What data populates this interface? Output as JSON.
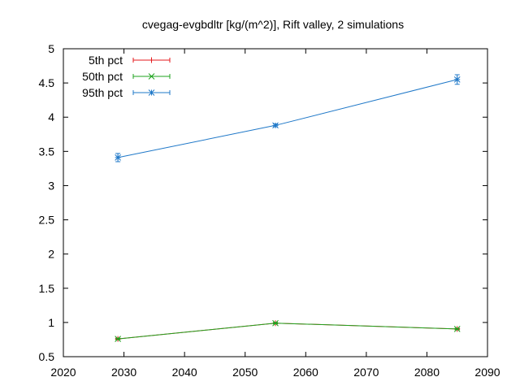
{
  "chart_data": {
    "type": "line",
    "title": "cvegag-evgbdltr [kg/(m^2)], Rift valley, 2 simulations",
    "xlabel": "",
    "ylabel": "",
    "xlim": [
      2020,
      2090
    ],
    "ylim": [
      0.5,
      5
    ],
    "x_ticks": [
      "2020",
      "2030",
      "2040",
      "2050",
      "2060",
      "2070",
      "2080",
      "2090"
    ],
    "y_ticks": [
      "0.5",
      "1",
      "1.5",
      "2",
      "2.5",
      "3",
      "3.5",
      "4",
      "4.5",
      "5"
    ],
    "legend_position": "top-left",
    "grid": false,
    "x": [
      2029,
      2055,
      2085
    ],
    "series": [
      {
        "name": "5th pct",
        "color": "#e41a1c",
        "marker": "plus",
        "values": [
          0.76,
          0.99,
          0.905
        ],
        "err": [
          0.01,
          0.01,
          0.01
        ]
      },
      {
        "name": "50th pct",
        "color": "#1fa31f",
        "marker": "cross",
        "values": [
          0.76,
          0.99,
          0.905
        ],
        "err": [
          0.01,
          0.01,
          0.01
        ]
      },
      {
        "name": "95th pct",
        "color": "#1f78c8",
        "marker": "star",
        "values": [
          3.41,
          3.88,
          4.55
        ],
        "err": [
          0.06,
          0.02,
          0.07
        ]
      }
    ]
  }
}
